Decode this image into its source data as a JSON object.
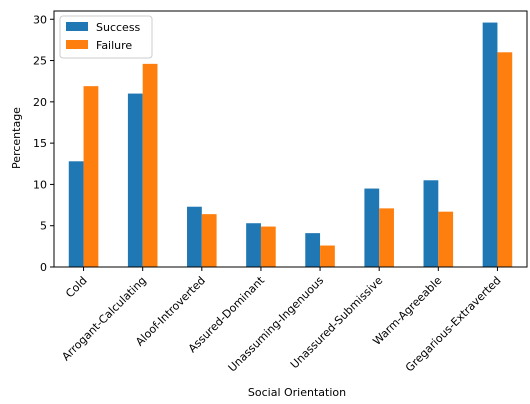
{
  "chart_data": {
    "type": "bar",
    "title": "",
    "xlabel": "Social Orientation",
    "ylabel": "Percentage",
    "ylim": [
      0,
      31
    ],
    "yticks": [
      0,
      5,
      10,
      15,
      20,
      25,
      30
    ],
    "grid": false,
    "legend_position": "top-left",
    "categories": [
      "Cold",
      "Arrogant-Calculating",
      "Aloof-Introverted",
      "Assured-Dominant",
      "Unassuming-Ingenuous",
      "Unassured-Submissive",
      "Warm-Agreeable",
      "Gregarious-Extraverted"
    ],
    "series": [
      {
        "name": "Success",
        "color": "#1f77b4",
        "values": [
          12.8,
          21.0,
          7.3,
          5.3,
          4.1,
          9.5,
          10.5,
          29.6
        ]
      },
      {
        "name": "Failure",
        "color": "#ff7f0e",
        "values": [
          21.9,
          24.6,
          6.4,
          4.9,
          2.6,
          7.1,
          6.7,
          26.0
        ]
      }
    ]
  }
}
